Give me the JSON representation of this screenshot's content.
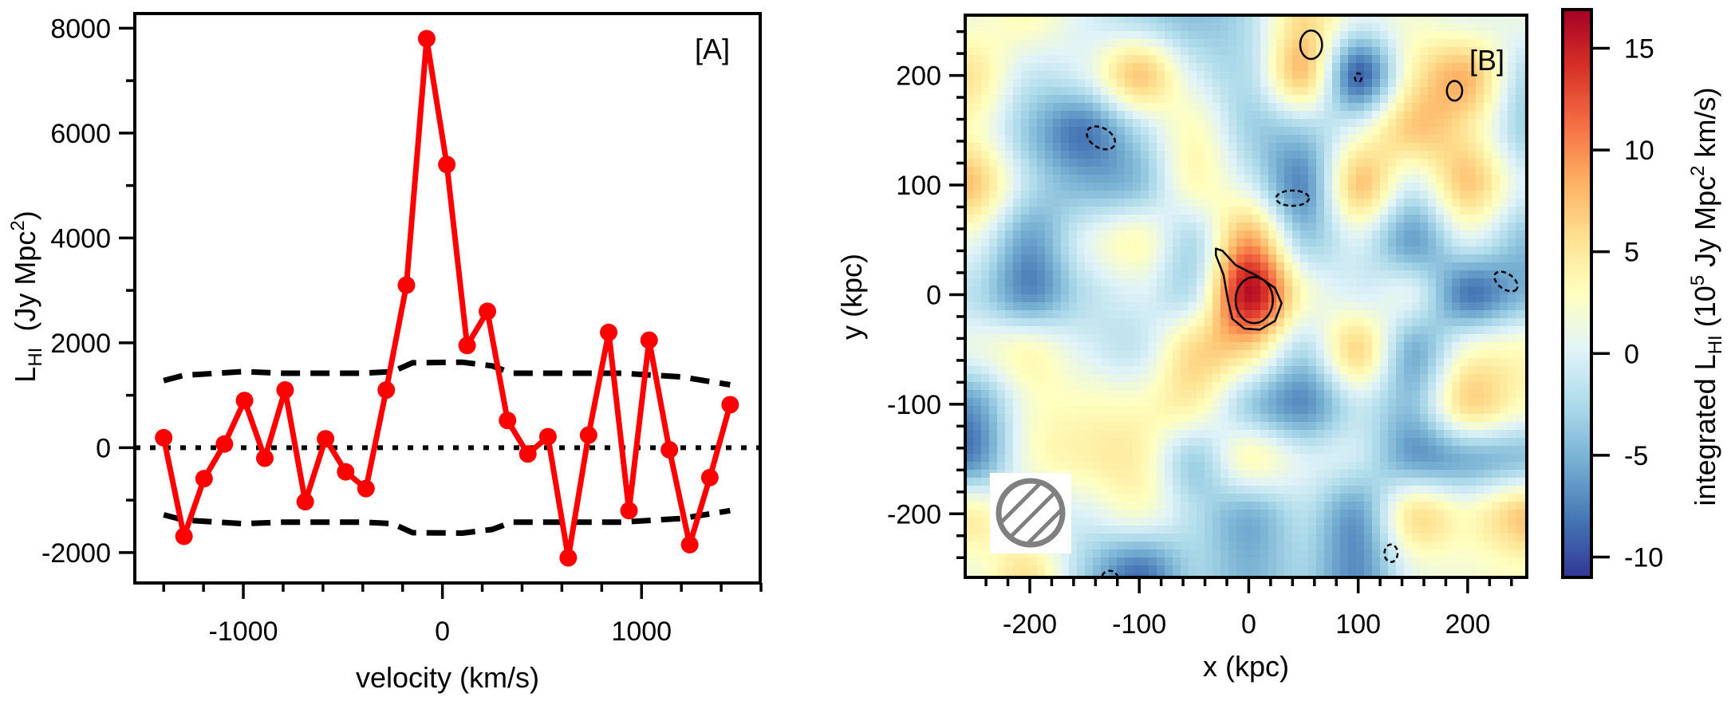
{
  "chart_data": [
    {
      "type": "line",
      "panel_tag": "[A]",
      "xlabel": "velocity (km/s)",
      "ylabel": {
        "main": "L",
        "sub": "HI",
        "unit": "  (Jy Mpc",
        "sup": "2",
        "close": ")"
      },
      "xlim": [
        -1545,
        1596
      ],
      "ylim": [
        -2580,
        8280
      ],
      "x_ticks": [
        -1000,
        0,
        1000
      ],
      "x_tick_labels": [
        "-1000",
        "0",
        "1000"
      ],
      "y_ticks": [
        -2000,
        0,
        2000,
        4000,
        6000,
        8000
      ],
      "y_tick_labels": [
        "-2000",
        "0",
        "2000",
        "4000",
        "6000",
        "8000"
      ],
      "grid": false,
      "series": [
        {
          "style": "line-with-markers",
          "color": "#ff0000",
          "x": [
            -1400,
            -1298,
            -1197,
            -1095,
            -994,
            -892,
            -790,
            -689,
            -587,
            -486,
            -384,
            -282,
            -181,
            -79,
            22,
            124,
            226,
            327,
            429,
            530,
            632,
            734,
            835,
            937,
            1038,
            1140,
            1242,
            1343,
            1445
          ],
          "y": [
            190,
            -1690,
            -590,
            70,
            900,
            -200,
            1100,
            -1030,
            170,
            -460,
            -780,
            1100,
            3100,
            7800,
            5400,
            1950,
            2600,
            520,
            -120,
            210,
            -2100,
            240,
            2200,
            -1200,
            2050,
            -40,
            -1850,
            -570,
            820
          ]
        },
        {
          "style": "dashed",
          "color": "#000000",
          "x": [
            -1400,
            -1300,
            -1000,
            -800,
            -400,
            -250,
            -150,
            100,
            250,
            350,
            900,
            1200,
            1445
          ],
          "y": [
            1280,
            1380,
            1450,
            1420,
            1420,
            1450,
            1620,
            1630,
            1560,
            1420,
            1420,
            1350,
            1200
          ]
        },
        {
          "style": "dashed",
          "color": "#000000",
          "x": [
            -1400,
            -1300,
            -1000,
            -800,
            -400,
            -250,
            -150,
            100,
            250,
            350,
            900,
            1200,
            1445
          ],
          "y": [
            -1280,
            -1380,
            -1450,
            -1420,
            -1420,
            -1450,
            -1620,
            -1630,
            -1560,
            -1420,
            -1420,
            -1350,
            -1200
          ]
        },
        {
          "style": "dotted",
          "color": "#000000",
          "x": [
            -1545,
            1596
          ],
          "y": [
            0,
            0
          ]
        }
      ]
    },
    {
      "type": "heatmap",
      "panel_tag": "[B]",
      "xlabel": "x (kpc)",
      "ylabel": "y (kpc)",
      "xlim": [
        -259,
        254
      ],
      "ylim": [
        -258,
        255
      ],
      "x_ticks": [
        -200,
        -100,
        0,
        100,
        200
      ],
      "x_tick_labels": [
        "-200",
        "-100",
        "0",
        "100",
        "200"
      ],
      "y_ticks": [
        -200,
        -100,
        0,
        100,
        200
      ],
      "y_tick_labels": [
        "-200",
        "-100",
        "0",
        "100",
        "200"
      ],
      "grid_x": [
        -250,
        -200,
        -150,
        -100,
        -50,
        0,
        50,
        100,
        150,
        200,
        250
      ],
      "grid_y": [
        250,
        200,
        150,
        100,
        50,
        0,
        -50,
        -100,
        -150,
        -200,
        -250
      ],
      "values": [
        [
          2,
          3,
          0,
          -2,
          -4,
          -2,
          6,
          0,
          2,
          1,
          1
        ],
        [
          5,
          -1,
          0,
          7,
          0,
          -2,
          7,
          -9,
          4,
          8,
          -2
        ],
        [
          3,
          -4,
          -8,
          -2,
          3,
          -3,
          -3,
          1,
          7,
          5,
          -3
        ],
        [
          7,
          -2,
          -5,
          -4,
          3,
          0,
          -7,
          7,
          0,
          7,
          0
        ],
        [
          1,
          -6,
          0,
          3,
          -2,
          9,
          -3,
          0,
          -6,
          0,
          -4
        ],
        [
          -2,
          -7,
          -2,
          0,
          -1,
          16,
          3,
          0,
          0,
          -8,
          -5
        ],
        [
          1,
          3,
          0,
          -1,
          6,
          6,
          -2,
          6,
          -5,
          2,
          3
        ],
        [
          -6,
          2,
          3,
          3,
          4,
          -3,
          -7,
          -1,
          -4,
          6,
          3
        ],
        [
          -7,
          2,
          4,
          4,
          -3,
          3,
          0,
          -1,
          -6,
          -5,
          -4
        ],
        [
          4,
          0,
          0,
          2,
          -2,
          -5,
          -2,
          -6,
          5,
          3,
          7
        ],
        [
          2,
          5,
          -3,
          -8,
          -3,
          -5,
          -3,
          -7,
          1,
          2,
          3
        ]
      ],
      "colormap": [
        "#313695",
        "#4575b4",
        "#74add1",
        "#abd9e9",
        "#e0f3f8",
        "#ffffbf",
        "#fee090",
        "#fdae61",
        "#f46d43",
        "#d73027",
        "#a50026"
      ],
      "contours": {
        "positive": [
          {
            "path": [
              [
                -30,
                42
              ],
              [
                -24,
                40
              ],
              [
                -12,
                27
              ],
              [
                8,
                17
              ],
              [
                24,
                6
              ],
              [
                30,
                -8
              ],
              [
                24,
                -24
              ],
              [
                10,
                -32
              ],
              [
                -4,
                -31
              ],
              [
                -15,
                -22
              ],
              [
                -19,
                -5
              ],
              [
                -23,
                18
              ],
              [
                -30,
                36
              ]
            ]
          },
          {
            "center": [
              5,
              -5
            ],
            "radii": [
              17,
              21
            ]
          },
          {
            "center": [
              57,
              228
            ],
            "radii": [
              10,
              13
            ]
          },
          {
            "center": [
              188,
              186
            ],
            "radii": [
              7,
              9
            ]
          }
        ],
        "negative": [
          {
            "center": [
              -135,
              143
            ],
            "radii": [
              14,
              9
            ],
            "angle": 30
          },
          {
            "center": [
              40,
              88
            ],
            "radii": [
              15,
              7
            ],
            "angle": 0
          },
          {
            "center": [
              235,
              12
            ],
            "radii": [
              12,
              7
            ],
            "angle": 35
          },
          {
            "center": [
              130,
              -236
            ],
            "radii": [
              6,
              8
            ],
            "angle": 0
          },
          {
            "center": [
              -127,
              -258
            ],
            "radii": [
              7,
              6
            ],
            "angle": 0
          },
          {
            "center": [
              100,
              198
            ],
            "radii": [
              3,
              4
            ],
            "angle": 0
          }
        ]
      },
      "beam_icon": "hatched-circle-beam",
      "colorbar": {
        "range": [
          -11,
          16.9
        ],
        "ticks": [
          -10,
          -5,
          0,
          5,
          10,
          15
        ],
        "tick_labels": [
          "-10",
          "-5",
          "0",
          "5",
          "10",
          "15"
        ],
        "label": {
          "pre": "integrated L",
          "sub": "HI",
          "mid": " (10",
          "sup1": "5",
          "mid2": " Jy Mpc",
          "sup2": "2",
          "post": " km/s)"
        }
      }
    }
  ]
}
